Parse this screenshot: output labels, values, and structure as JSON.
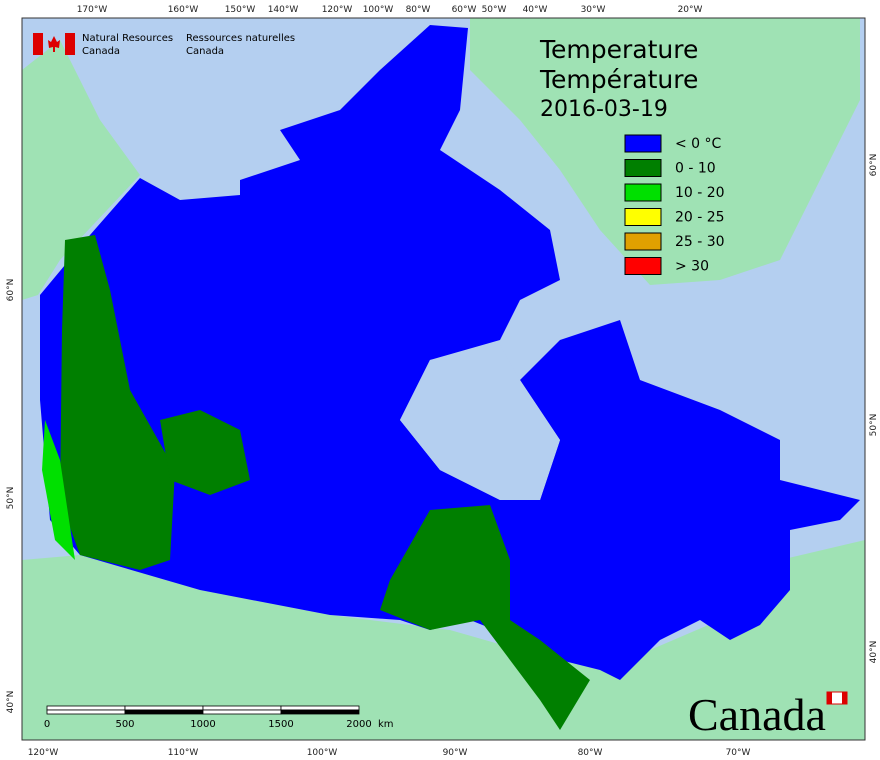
{
  "header": {
    "org_en_1": "Natural Resources",
    "org_en_2": "Canada",
    "org_fr_1": "Ressources naturelles",
    "org_fr_2": "Canada"
  },
  "title": {
    "en": "Temperature",
    "fr": "Température",
    "date": "2016-03-19"
  },
  "legend": [
    {
      "label": "< 0 °C",
      "color": "#0000ff"
    },
    {
      "label": "0 - 10",
      "color": "#007f00"
    },
    {
      "label": "10 - 20",
      "color": "#00e000"
    },
    {
      "label": "20 - 25",
      "color": "#ffff00"
    },
    {
      "label": "25 - 30",
      "color": "#e0a000"
    },
    {
      "label": "> 30",
      "color": "#ff0000"
    }
  ],
  "graticule": {
    "top": [
      "170°W",
      "160°W",
      "150°W",
      "140°W",
      "120°W",
      "100°W",
      "80°W",
      "60°W",
      "50°W",
      "40°W",
      "30°W",
      "20°W"
    ],
    "bottom": [
      "120°W",
      "110°W",
      "100°W",
      "90°W",
      "80°W",
      "70°W"
    ],
    "left": [
      "60°N",
      "50°N",
      "40°N"
    ],
    "right": [
      "60°N",
      "50°N",
      "40°N"
    ]
  },
  "scale_bar": {
    "ticks": [
      "0",
      "500",
      "1000",
      "1500",
      "2000"
    ],
    "unit": "km"
  },
  "wordmark": "Canada"
}
